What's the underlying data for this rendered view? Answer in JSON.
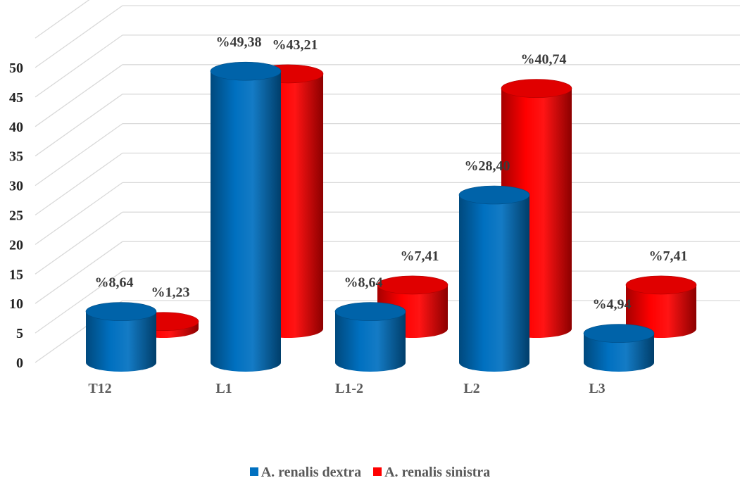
{
  "chart_data": {
    "type": "bar",
    "style": "3d-cylinder",
    "categories": [
      "T12",
      "L1",
      "L1-2",
      "L2",
      "L3"
    ],
    "series": [
      {
        "name": "A. renalis dextra",
        "color": "#0070C0",
        "values": [
          8.64,
          49.38,
          8.64,
          28.4,
          4.94
        ],
        "labels": [
          "%8,64",
          "%49,38",
          "%8,64",
          "%28,40",
          "%4,94"
        ]
      },
      {
        "name": "A. renalis sinistra",
        "color": "#FF0000",
        "values": [
          1.23,
          43.21,
          7.41,
          40.74,
          7.41
        ],
        "labels": [
          "%1,23",
          "%43,21",
          "%7,41",
          "%40,74",
          "%7,41"
        ]
      }
    ],
    "ylim": [
      0,
      50
    ],
    "yticks": [
      "0",
      "5",
      "10",
      "15",
      "20",
      "25",
      "30",
      "35",
      "40",
      "45",
      "50"
    ],
    "grid": true,
    "legend": "bottom"
  }
}
